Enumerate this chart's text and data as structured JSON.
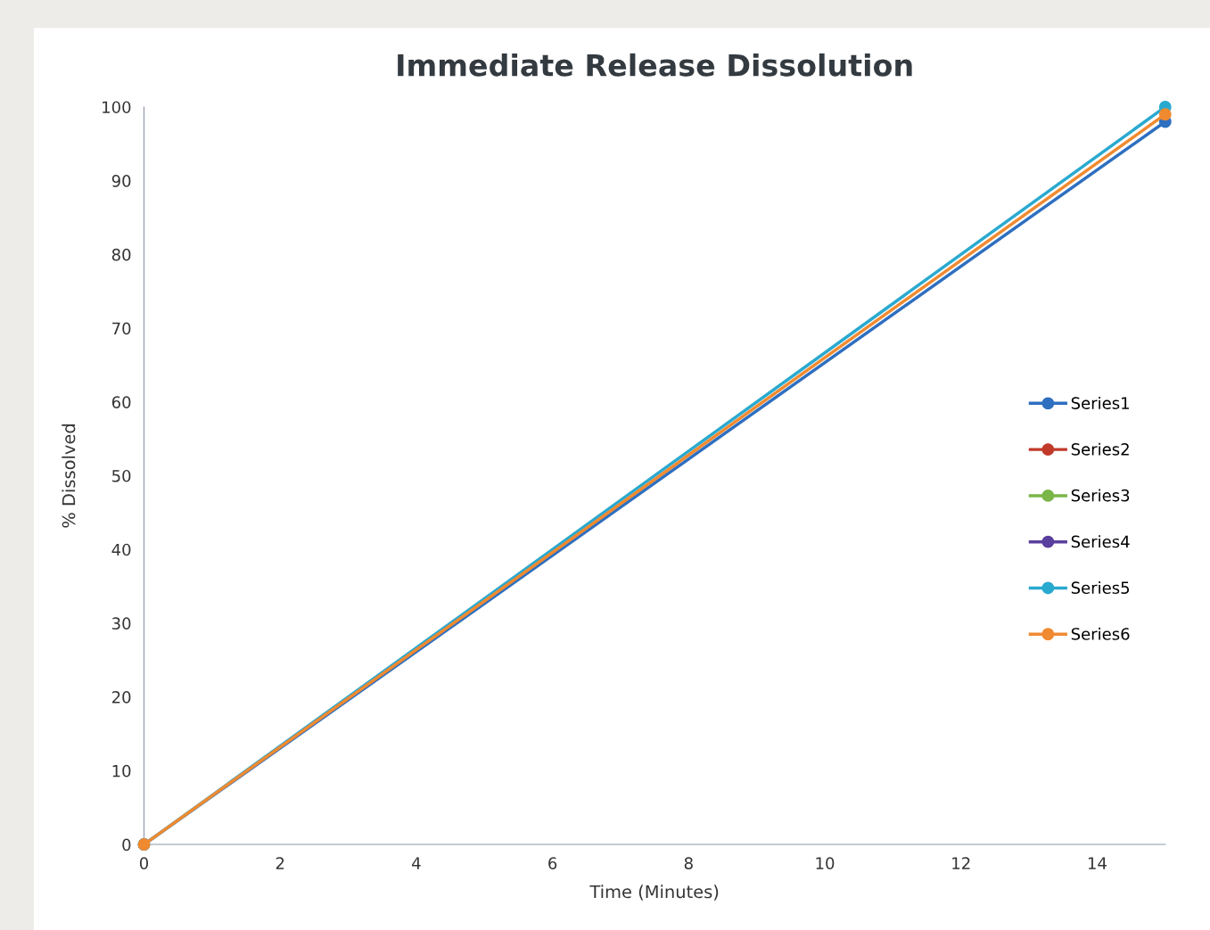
{
  "chart_data": {
    "type": "line",
    "title": "Immediate Release Dissolution",
    "xlabel": "Time (Minutes)",
    "ylabel": "% Dissolved",
    "x": [
      0,
      15
    ],
    "series": [
      {
        "name": "Series1",
        "color": "#2e6fc0",
        "values": [
          0,
          98
        ]
      },
      {
        "name": "Series2",
        "color": "#c0392b",
        "values": [
          null,
          null
        ]
      },
      {
        "name": "Series3",
        "color": "#7ab648",
        "values": [
          null,
          null
        ]
      },
      {
        "name": "Series4",
        "color": "#5b3f9e",
        "values": [
          null,
          null
        ]
      },
      {
        "name": "Series5",
        "color": "#2aa9cf",
        "values": [
          0,
          100
        ]
      },
      {
        "name": "Series6",
        "color": "#f08a30",
        "values": [
          0,
          99
        ]
      }
    ],
    "xlim": [
      0,
      15
    ],
    "xticks": [
      0,
      2,
      4,
      6,
      8,
      10,
      12,
      14
    ],
    "ylim": [
      0,
      100
    ],
    "yticks": [
      0,
      10,
      20,
      30,
      40,
      50,
      60,
      70,
      80,
      90,
      100
    ],
    "grid": false,
    "legend": "right",
    "marker": "circle",
    "line_style": "solid"
  }
}
